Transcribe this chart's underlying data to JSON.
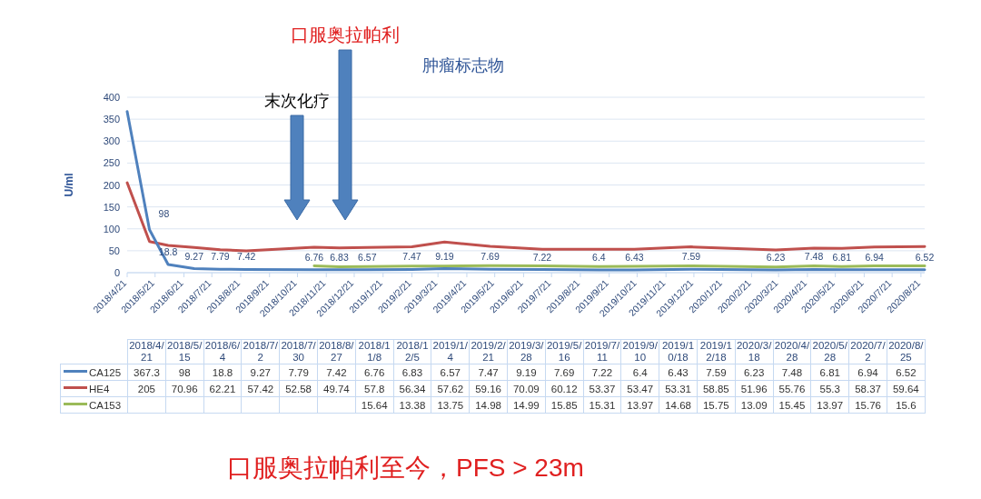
{
  "chart_data": [
    {
      "type": "line",
      "title": "肿瘤标志物",
      "ylabel": "U/ml",
      "x": [
        "2018-04-21",
        "2018-05-15",
        "2018-06-04",
        "2018-07-02",
        "2018-07-30",
        "2018-08-27",
        "2018-11-08",
        "2018-12-05",
        "2019-01-04",
        "2019-02-21",
        "2019-03-28",
        "2019-05-16",
        "2019-07-11",
        "2019-09-10",
        "2019-10-18",
        "2019-12-18",
        "2020-03-18",
        "2020-04-28",
        "2020-05-28",
        "2020-07-02",
        "2020-08-25"
      ],
      "series": [
        {
          "color": "#4f81bd",
          "values": [
            367.3,
            98,
            18.8,
            9.27,
            7.79,
            7.42,
            6.76,
            6.83,
            6.57,
            7.47,
            9.19,
            7.69,
            7.22,
            6.4,
            6.43,
            7.59,
            6.23,
            7.48,
            6.81,
            6.94,
            6.52
          ],
          "value_labels": [
            null,
            "98",
            "18.8",
            "9.27",
            "7.79",
            "7.42",
            "6.76",
            "6.83",
            "6.57",
            "7.47",
            "9.19",
            "7.69",
            "7.22",
            "6.4",
            "6.43",
            "7.59",
            "6.23",
            "7.48",
            "6.81",
            "6.94",
            "6.52"
          ]
        },
        {
          "color": "#c0504d",
          "values": [
            205,
            70.96,
            62.21,
            57.42,
            52.58,
            49.74,
            57.8,
            56.34,
            57.62,
            59.16,
            70.09,
            60.12,
            53.37,
            53.47,
            53.31,
            58.85,
            51.96,
            55.76,
            55.3,
            58.37,
            59.64
          ]
        },
        {
          "color": "#9bbb59",
          "values": [
            null,
            null,
            null,
            null,
            null,
            null,
            15.64,
            13.38,
            13.75,
            14.98,
            14.99,
            15.85,
            15.31,
            13.97,
            14.68,
            15.75,
            13.09,
            15.45,
            13.97,
            15.76,
            15.6
          ]
        }
      ],
      "xlim": [
        "2018-04-21",
        "2020-08-25"
      ],
      "xticks": [
        {
          "value": "2018-04-21",
          "label": "2018/4/21"
        },
        {
          "value": "2018-05-21",
          "label": "2018/5/21"
        },
        {
          "value": "2018-06-21",
          "label": "2018/6/21"
        },
        {
          "value": "2018-07-21",
          "label": "2018/7/21"
        },
        {
          "value": "2018-08-21",
          "label": "2018/8/21"
        },
        {
          "value": "2018-09-21",
          "label": "2018/9/21"
        },
        {
          "value": "2018-10-21",
          "label": "2018/10/21"
        },
        {
          "value": "2018-11-21",
          "label": "2018/11/21"
        },
        {
          "value": "2018-12-21",
          "label": "2018/12/21"
        },
        {
          "value": "2019-01-21",
          "label": "2019/1/21"
        },
        {
          "value": "2019-02-21",
          "label": "2019/2/21"
        },
        {
          "value": "2019-03-21",
          "label": "2019/3/21"
        },
        {
          "value": "2019-04-21",
          "label": "2019/4/21"
        },
        {
          "value": "2019-05-21",
          "label": "2019/5/21"
        },
        {
          "value": "2019-06-21",
          "label": "2019/6/21"
        },
        {
          "value": "2019-07-21",
          "label": "2019/7/21"
        },
        {
          "value": "2019-08-21",
          "label": "2019/8/21"
        },
        {
          "value": "2019-09-21",
          "label": "2019/9/21"
        },
        {
          "value": "2019-10-21",
          "label": "2019/10/21"
        },
        {
          "value": "2019-11-21",
          "label": "2019/11/21"
        },
        {
          "value": "2019-12-21",
          "label": "2019/12/21"
        },
        {
          "value": "2020-01-21",
          "label": "2020/1/21"
        },
        {
          "value": "2020-02-21",
          "label": "2020/2/21"
        },
        {
          "value": "2020-03-21",
          "label": "2020/3/21"
        },
        {
          "value": "2020-04-21",
          "label": "2020/4/21"
        },
        {
          "value": "2020-05-21",
          "label": "2020/5/21"
        },
        {
          "value": "2020-06-21",
          "label": "2020/6/21"
        },
        {
          "value": "2020-07-21",
          "label": "2020/7/21"
        },
        {
          "value": "2020-08-21",
          "label": "2020/8/21"
        }
      ],
      "ylim": [
        0,
        400
      ],
      "yticks": [
        0,
        50,
        100,
        150,
        200,
        250,
        300,
        350,
        400
      ],
      "grid": "y",
      "annotations": [
        "末次化疗",
        "口服奥拉帕利",
        "口服奥拉帕利至今，PFS > 23m"
      ]
    },
    {
      "type": "other",
      "categories": [
        "2018/4/21",
        "2018/5/15",
        "2018/6/4",
        "2018/7/2",
        "2018/7/30",
        "2018/8/27",
        "2018/11/8",
        "2018/12/5",
        "2019/1/4",
        "2019/2/21",
        "2019/3/28",
        "2019/5/16",
        "2019/7/11",
        "2019/9/10",
        "2019/10/18",
        "2019/12/18",
        "2020/3/18",
        "2020/4/28",
        "2020/5/28",
        "2020/7/2",
        "2020/8/25"
      ],
      "series": [
        {
          "name": "CA125",
          "color": "#4f81bd",
          "values": [
            367.3,
            98,
            18.8,
            9.27,
            7.79,
            7.42,
            6.76,
            6.83,
            6.57,
            7.47,
            9.19,
            7.69,
            7.22,
            6.4,
            6.43,
            7.59,
            6.23,
            7.48,
            6.81,
            6.94,
            6.52
          ]
        },
        {
          "name": "HE4",
          "color": "#c0504d",
          "values": [
            205,
            70.96,
            62.21,
            57.42,
            52.58,
            49.74,
            57.8,
            56.34,
            57.62,
            59.16,
            70.09,
            60.12,
            53.37,
            53.47,
            53.31,
            58.85,
            51.96,
            55.76,
            55.3,
            58.37,
            59.64
          ]
        },
        {
          "name": "CA153",
          "color": "#9bbb59",
          "values": [
            null,
            null,
            null,
            null,
            null,
            null,
            15.64,
            13.38,
            13.75,
            14.98,
            14.99,
            15.85,
            15.31,
            13.97,
            14.68,
            15.75,
            13.09,
            15.45,
            13.97,
            15.76,
            15.6
          ]
        }
      ],
      "legend": "left",
      "data_labels": true
    }
  ]
}
